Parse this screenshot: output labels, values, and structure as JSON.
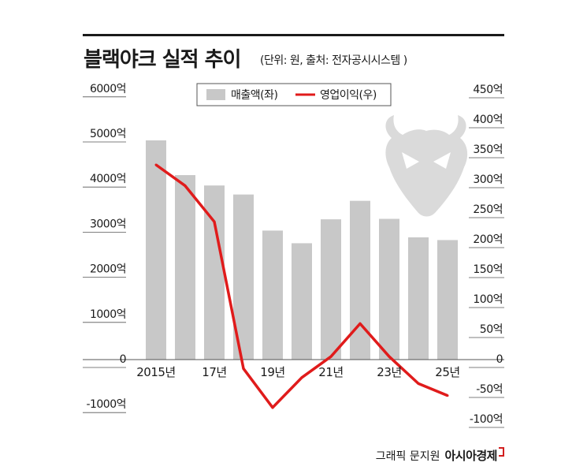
{
  "header": {
    "title": "블랙야크 실적 추이",
    "subtitle": "(단위: 원, 출처: 전자공시시스템 )"
  },
  "credit": {
    "graphic": "그래픽 문지원",
    "brand": "아시아경제"
  },
  "colors": {
    "bar": "#c8c8c8",
    "line": "#e01b1b",
    "text": "#1a1a1a"
  },
  "chart_data": {
    "type": "bar",
    "title": "블랙야크 실적 추이",
    "categories": [
      "2015년",
      "",
      "17년",
      "",
      "19년",
      "",
      "21년",
      "",
      "23년",
      "",
      "25년"
    ],
    "left_axis": {
      "range": [
        -1000,
        6000
      ],
      "ticks": [
        6000,
        5000,
        4000,
        3000,
        2000,
        1000,
        0,
        -1000
      ],
      "tick_labels": [
        "6000억",
        "5000억",
        "4000억",
        "3000억",
        "2000억",
        "1000억",
        "0",
        "-1000억"
      ]
    },
    "right_axis": {
      "range": [
        -100,
        450
      ],
      "ticks": [
        450,
        400,
        350,
        300,
        250,
        200,
        150,
        100,
        50,
        0,
        -50,
        -100
      ],
      "tick_labels": [
        "450억",
        "400억",
        "350억",
        "300억",
        "250억",
        "200억",
        "150억",
        "100억",
        "50억",
        "0",
        "-50억",
        "-100억"
      ]
    },
    "series": [
      {
        "name": "매출액(좌)",
        "kind": "bar",
        "axis": "left",
        "values": [
          4860,
          4090,
          3860,
          3660,
          2860,
          2580,
          3110,
          3520,
          3120,
          2710,
          2650
        ]
      },
      {
        "name": "영업이익(우)",
        "kind": "line",
        "axis": "right",
        "values": [
          325,
          290,
          230,
          -15,
          -80,
          -30,
          5,
          60,
          5,
          -40,
          -60
        ]
      }
    ],
    "legend": "top-center",
    "grid": false
  }
}
